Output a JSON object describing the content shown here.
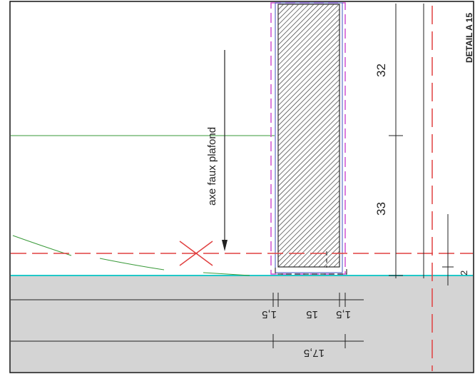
{
  "drawing": {
    "annotation_text": "axe faux plafond",
    "detail_title": "DETAIL A 15",
    "dimensions": {
      "d32": "32",
      "d33": "33",
      "d2": "2",
      "d1_5_left": "1,5",
      "d15": "15",
      "d1_5_right": "1,5",
      "d17_5": "17,5"
    },
    "colors": {
      "background": "#ffffff",
      "slab_fill": "#d4d4d4",
      "hatch": "#3a3a3a",
      "dim_line": "#222222",
      "axis_red": "#e04040",
      "magenta_dash": "#d050d0",
      "cyan_line": "#20c8c8",
      "green_line": "#3a9a3a"
    }
  }
}
